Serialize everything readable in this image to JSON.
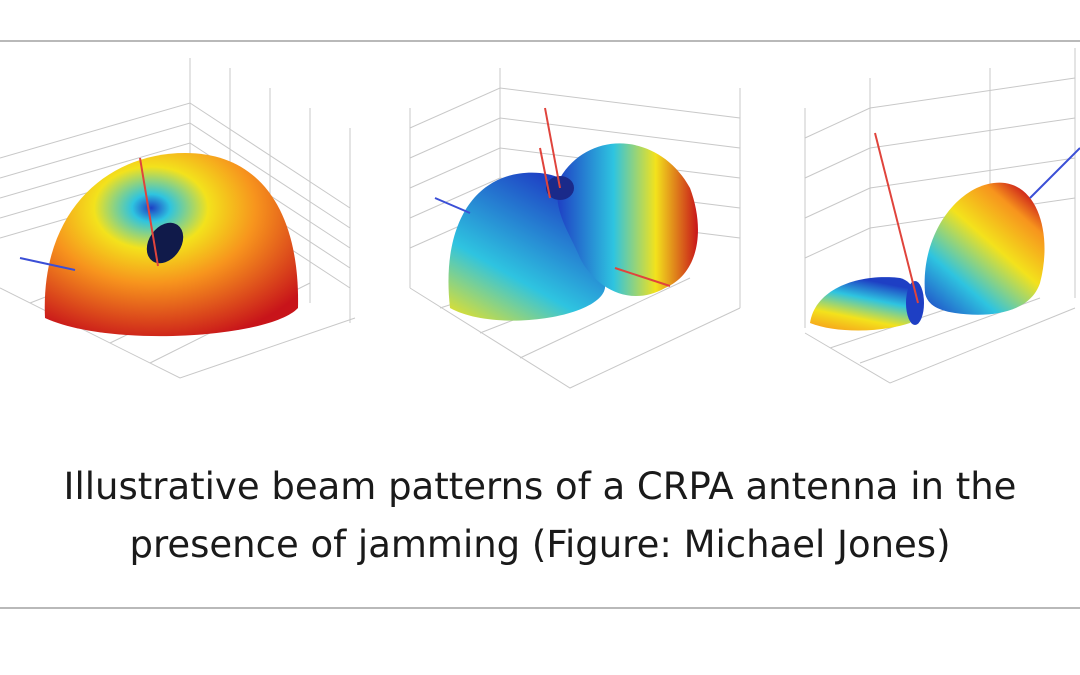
{
  "figure": {
    "caption_line1": "Illustrative beam patterns of a CRPA antenna in the",
    "caption_line2": "presence of jamming (Figure: Michael Jones)",
    "panels": [
      {
        "name": "pattern-no-jamming",
        "colormap": "jet"
      },
      {
        "name": "pattern-two-lobes",
        "colormap": "jet"
      },
      {
        "name": "pattern-nulled",
        "colormap": "jet"
      }
    ],
    "colors": {
      "rule": "#b9b9b9",
      "grid": "#c8c8c8",
      "axis_red": "#e0443c",
      "axis_blue": "#3b4fd6",
      "jet_red": "#c8141a",
      "jet_orange": "#f7941d",
      "jet_yellow": "#f3e21c",
      "jet_cyan": "#2ec4e0",
      "jet_blue": "#1e3fc4"
    }
  }
}
